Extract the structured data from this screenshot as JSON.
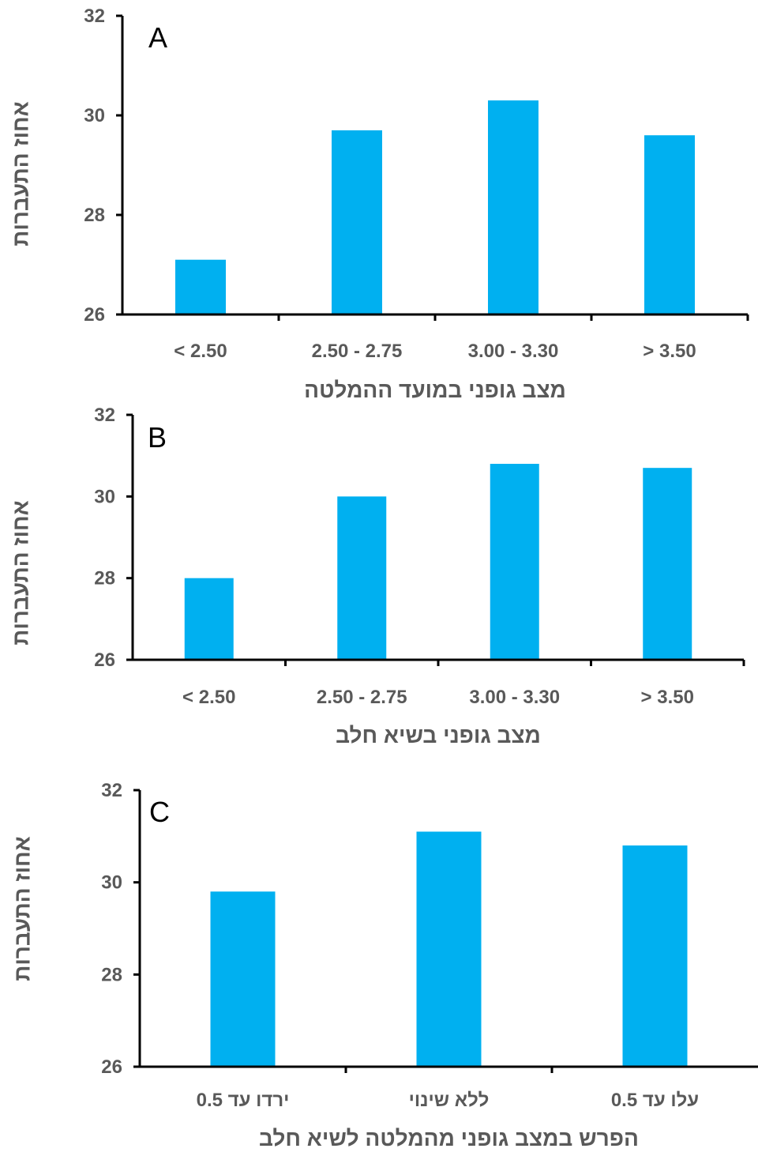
{
  "colors": {
    "bar": "#00B0F0",
    "axis": "#000000",
    "text": "#595959"
  },
  "chart_data": [
    {
      "type": "bar",
      "panel": "A",
      "categories": [
        "< 2.50",
        "2.50 - 2.75",
        "3.00 - 3.30",
        "> 3.50"
      ],
      "values": [
        27.1,
        29.7,
        30.3,
        29.6
      ],
      "ylim": [
        26,
        32
      ],
      "yticks": [
        "26",
        "28",
        "30",
        "32"
      ],
      "ylabel": "אחוז התעברות",
      "xlabel": "מצב גופני במועד ההמלטה",
      "grid": false
    },
    {
      "type": "bar",
      "panel": "B",
      "categories": [
        "< 2.50",
        "2.50 - 2.75",
        "3.00 - 3.30",
        "> 3.50"
      ],
      "values": [
        28.0,
        30.0,
        30.8,
        30.7
      ],
      "ylim": [
        26,
        32
      ],
      "yticks": [
        "26",
        "28",
        "30",
        "32"
      ],
      "ylabel": "אחוז התעברות",
      "xlabel": "מצב גופני בשיא חלב",
      "grid": false
    },
    {
      "type": "bar",
      "panel": "C",
      "categories": [
        "ירדו עד 0.5",
        "ללא שינוי",
        "עלו עד 0.5"
      ],
      "values": [
        29.8,
        31.1,
        30.8
      ],
      "ylim": [
        26,
        32
      ],
      "yticks": [
        "26",
        "28",
        "30",
        "32"
      ],
      "ylabel": "אחוז התעברות",
      "xlabel": "הפרש במצב גופני מהמלטה לשיא חלב",
      "grid": false
    }
  ]
}
